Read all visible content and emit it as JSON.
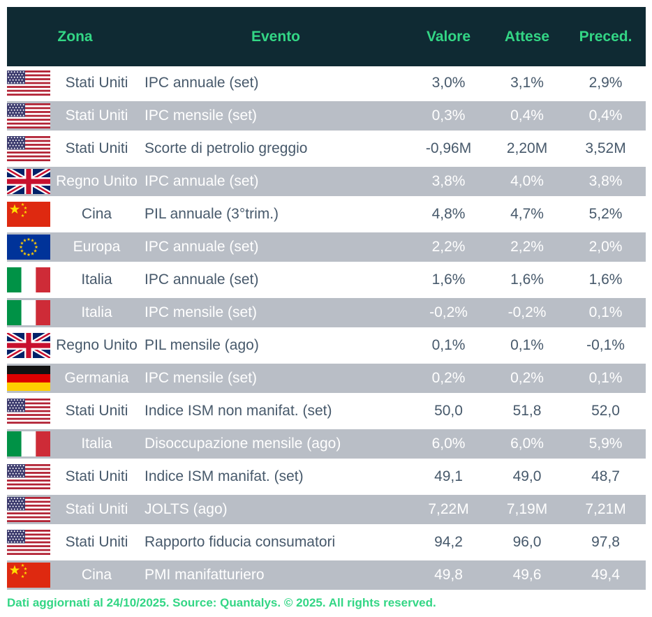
{
  "colors": {
    "header_bg": "#0f2a33",
    "accent_green": "#33d685",
    "row_alt_bg": "#b9bec6",
    "row_text": "#47596b",
    "row_alt_text": "#ffffff"
  },
  "table": {
    "columns": [
      "Zona",
      "Evento",
      "Valore",
      "Attese",
      "Preced."
    ],
    "rows": [
      {
        "flag": "usa",
        "zona": "Stati Uniti",
        "evento": "IPC annuale (set)",
        "valore": "3,0%",
        "attese": "3,1%",
        "preced": "2,9%",
        "shaded": false
      },
      {
        "flag": "usa",
        "zona": "Stati Uniti",
        "evento": "IPC mensile (set)",
        "valore": "0,3%",
        "attese": "0,4%",
        "preced": "0,4%",
        "shaded": true
      },
      {
        "flag": "usa",
        "zona": "Stati Uniti",
        "evento": "Scorte di petrolio greggio",
        "valore": "-0,96M",
        "attese": "2,20M",
        "preced": "3,52M",
        "shaded": false
      },
      {
        "flag": "uk",
        "zona": "Regno Unito",
        "evento": "IPC annuale (set)",
        "valore": "3,8%",
        "attese": "4,0%",
        "preced": "3,8%",
        "shaded": true
      },
      {
        "flag": "china",
        "zona": "Cina",
        "evento": "PIL annuale (3°trim.)",
        "valore": "4,8%",
        "attese": "4,7%",
        "preced": "5,2%",
        "shaded": false
      },
      {
        "flag": "eu",
        "zona": "Europa",
        "evento": "IPC annuale (set)",
        "valore": "2,2%",
        "attese": "2,2%",
        "preced": "2,0%",
        "shaded": true
      },
      {
        "flag": "italy",
        "zona": "Italia",
        "evento": "IPC annuale (set)",
        "valore": "1,6%",
        "attese": "1,6%",
        "preced": "1,6%",
        "shaded": false
      },
      {
        "flag": "italy",
        "zona": "Italia",
        "evento": "IPC mensile (set)",
        "valore": "-0,2%",
        "attese": "-0,2%",
        "preced": "0,1%",
        "shaded": true
      },
      {
        "flag": "uk",
        "zona": "Regno Unito",
        "evento": "PIL mensile (ago)",
        "valore": "0,1%",
        "attese": "0,1%",
        "preced": "-0,1%",
        "shaded": false
      },
      {
        "flag": "germany",
        "zona": "Germania",
        "evento": "IPC mensile (set)",
        "valore": "0,2%",
        "attese": "0,2%",
        "preced": "0,1%",
        "shaded": true
      },
      {
        "flag": "usa",
        "zona": "Stati Uniti",
        "evento": "Indice ISM non manifat. (set)",
        "valore": "50,0",
        "attese": "51,8",
        "preced": "52,0",
        "shaded": false
      },
      {
        "flag": "italy",
        "zona": "Italia",
        "evento": "Disoccupazione mensile (ago)",
        "valore": "6,0%",
        "attese": "6,0%",
        "preced": "5,9%",
        "shaded": true
      },
      {
        "flag": "usa",
        "zona": "Stati Uniti",
        "evento": "Indice ISM manifat. (set)",
        "valore": "49,1",
        "attese": "49,0",
        "preced": "48,7",
        "shaded": false
      },
      {
        "flag": "usa",
        "zona": "Stati Uniti",
        "evento": "JOLTS (ago)",
        "valore": "7,22M",
        "attese": "7,19M",
        "preced": "7,21M",
        "shaded": true
      },
      {
        "flag": "usa",
        "zona": "Stati Uniti",
        "evento": "Rapporto fiducia consumatori",
        "valore": "94,2",
        "attese": "96,0",
        "preced": "97,8",
        "shaded": false
      },
      {
        "flag": "china",
        "zona": "Cina",
        "evento": "PMI manifatturiero",
        "valore": "49,8",
        "attese": "49,6",
        "preced": "49,4",
        "shaded": true
      }
    ]
  },
  "footer": {
    "text": "Dati aggiornati al 24/10/2025. Source: Quantalys. © 2025. All rights reserved."
  },
  "chart_data": {
    "type": "table",
    "title": "Calendario economico",
    "columns": [
      "Zona",
      "Evento",
      "Valore",
      "Attese",
      "Preced."
    ],
    "rows": [
      [
        "Stati Uniti",
        "IPC annuale (set)",
        "3,0%",
        "3,1%",
        "2,9%"
      ],
      [
        "Stati Uniti",
        "IPC mensile (set)",
        "0,3%",
        "0,4%",
        "0,4%"
      ],
      [
        "Stati Uniti",
        "Scorte di petrolio greggio",
        "-0,96M",
        "2,20M",
        "3,52M"
      ],
      [
        "Regno Unito",
        "IPC annuale (set)",
        "3,8%",
        "4,0%",
        "3,8%"
      ],
      [
        "Cina",
        "PIL annuale (3°trim.)",
        "4,8%",
        "4,7%",
        "5,2%"
      ],
      [
        "Europa",
        "IPC annuale (set)",
        "2,2%",
        "2,2%",
        "2,0%"
      ],
      [
        "Italia",
        "IPC annuale (set)",
        "1,6%",
        "1,6%",
        "1,6%"
      ],
      [
        "Italia",
        "IPC mensile (set)",
        "-0,2%",
        "-0,2%",
        "0,1%"
      ],
      [
        "Regno Unito",
        "PIL mensile (ago)",
        "0,1%",
        "0,1%",
        "-0,1%"
      ],
      [
        "Germania",
        "IPC mensile (set)",
        "0,2%",
        "0,2%",
        "0,1%"
      ],
      [
        "Stati Uniti",
        "Indice ISM non manifat. (set)",
        "50,0",
        "51,8",
        "52,0"
      ],
      [
        "Italia",
        "Disoccupazione mensile (ago)",
        "6,0%",
        "6,0%",
        "5,9%"
      ],
      [
        "Stati Uniti",
        "Indice ISM manifat. (set)",
        "49,1",
        "49,0",
        "48,7"
      ],
      [
        "Stati Uniti",
        "JOLTS (ago)",
        "7,22M",
        "7,19M",
        "7,21M"
      ],
      [
        "Stati Uniti",
        "Rapporto fiducia consumatori",
        "94,2",
        "96,0",
        "97,8"
      ],
      [
        "Cina",
        "PMI manifatturiero",
        "49,8",
        "49,6",
        "49,4"
      ]
    ]
  }
}
